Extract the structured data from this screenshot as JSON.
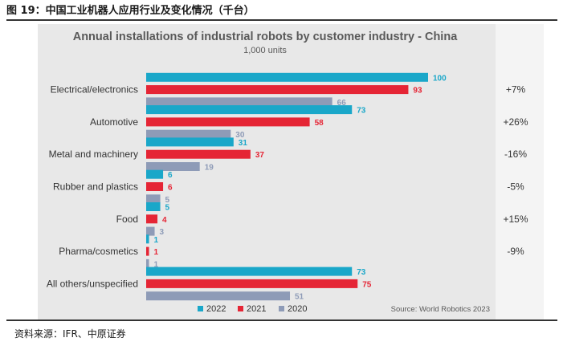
{
  "caption": {
    "figure_title": "图 19：中国工业机器人应用行业及变化情况（千台）",
    "source_note": "资料来源：IFR、中原证券"
  },
  "colors": {
    "2022": "#1aa7c9",
    "2021": "#e52535",
    "2020": "#8e9bb7",
    "growth_text": "#333333"
  },
  "chart_data": {
    "type": "bar",
    "orientation": "horizontal",
    "title": "Annual installations of industrial robots by customer industry - China",
    "subtitle": "1,000 units",
    "categories": [
      "Electrical/electronics",
      "Automotive",
      "Metal and machinery",
      "Rubber and plastics",
      "Food",
      "Pharma/cosmetics",
      "All others/unspecified"
    ],
    "series": [
      {
        "name": "2022",
        "values": [
          100,
          73,
          31,
          6,
          5,
          1,
          73
        ]
      },
      {
        "name": "2021",
        "values": [
          93,
          58,
          37,
          6,
          4,
          1,
          75
        ]
      },
      {
        "name": "2020",
        "values": [
          66,
          30,
          19,
          5,
          3,
          1,
          51
        ]
      }
    ],
    "growth": [
      "+7%",
      "+26%",
      "-16%",
      "-5%",
      "+15%",
      "-9%",
      ""
    ],
    "xlim": [
      0,
      100
    ],
    "legend_position": "bottom-left",
    "source": "Source: World Robotics 2023"
  }
}
